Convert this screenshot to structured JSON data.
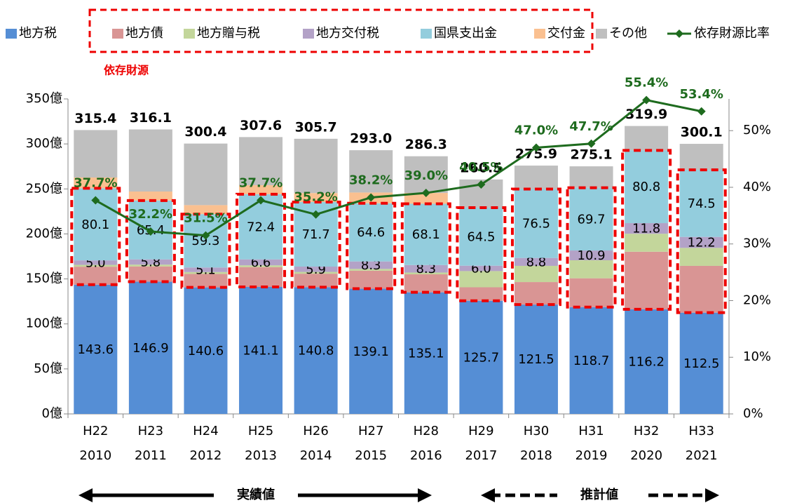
{
  "chart_data": {
    "type": "bar",
    "stacked": true,
    "categories": [
      "H22",
      "H23",
      "H24",
      "H25",
      "H26",
      "H27",
      "H28",
      "H29",
      "H30",
      "H31",
      "H32",
      "H33"
    ],
    "years": [
      2010,
      2011,
      2012,
      2013,
      2014,
      2015,
      2016,
      2017,
      2018,
      2019,
      2020,
      2021
    ],
    "series": [
      {
        "name": "地方税",
        "color": "#558ed5",
        "values": [
          143.6,
          146.9,
          140.6,
          141.1,
          140.8,
          139.1,
          135.1,
          125.7,
          121.5,
          118.7,
          116.2,
          112.5
        ],
        "labeled": true
      },
      {
        "name": "地方債",
        "color": "#d99594",
        "values": [
          20,
          17,
          15,
          22,
          15,
          20,
          20,
          15,
          25,
          32,
          64,
          52
        ]
      },
      {
        "name": "地方贈与税",
        "color": "#c3d69b",
        "values": [
          2,
          2,
          2,
          2,
          2,
          2,
          2,
          18,
          18,
          20,
          20,
          20
        ]
      },
      {
        "name": "地方交付税",
        "color": "#b3a2c7",
        "values": [
          5.0,
          5.8,
          5.1,
          6.6,
          5.9,
          8.3,
          8.3,
          6.0,
          8.8,
          10.9,
          11.8,
          12.2
        ],
        "value_labels": [
          "5.0",
          "5.8",
          "5.1",
          "6.6",
          "5.9",
          "8.3",
          "8.3",
          "6.0",
          "8.8",
          "10.9",
          "11.8",
          "12.2"
        ],
        "labeled": true
      },
      {
        "name": "国県支出金",
        "color": "#93cddd",
        "values": [
          80.1,
          65.4,
          59.3,
          72.4,
          71.7,
          64.6,
          68.1,
          64.5,
          76.5,
          69.7,
          80.8,
          74.5
        ],
        "labeled": true
      },
      {
        "name": "交付金",
        "color": "#fac090",
        "values": [
          12,
          10,
          10,
          10,
          10,
          12,
          12,
          0,
          0,
          0,
          0,
          0
        ]
      },
      {
        "name": "その他",
        "color": "#bfbfbf",
        "values": [
          52.7,
          69.0,
          68.4,
          53.5,
          60.3,
          47.0,
          40.8,
          31.3,
          26.1,
          23.8,
          27.1,
          28.9
        ]
      },
      {
        "name": "依存財源比率",
        "color": "#1e6b1e",
        "axis": "y2",
        "type": "line",
        "values": [
          37.7,
          32.2,
          31.5,
          37.7,
          35.2,
          38.2,
          39.0,
          40.5,
          47.0,
          47.7,
          55.4,
          53.4
        ],
        "value_labels": [
          "37.7%",
          "32.2%",
          "31.5%",
          "37.7%",
          "35.2%",
          "38.2%",
          "39.0%",
          "40.5%",
          "47.0%",
          "47.7%",
          "55.4%",
          "53.4%"
        ]
      }
    ],
    "totals": [
      315.4,
      316.1,
      300.4,
      307.6,
      305.7,
      293.0,
      286.3,
      260.5,
      275.9,
      275.1,
      319.9,
      300.1
    ],
    "total_labels": [
      "315.4",
      "316.1",
      "300.4",
      "307.6",
      "305.7",
      "293.0",
      "286.3",
      "260.5",
      "275.9",
      "275.1",
      "319.9",
      "300.1"
    ],
    "ylim": [
      0,
      350
    ],
    "yticks": [
      {
        "value": 0,
        "label": "0億"
      },
      {
        "value": 50,
        "label": "50億"
      },
      {
        "value": 100,
        "label": "100億"
      },
      {
        "value": 150,
        "label": "150億"
      },
      {
        "value": 200,
        "label": "200億"
      },
      {
        "value": 250,
        "label": "250億"
      },
      {
        "value": 300,
        "label": "300億"
      },
      {
        "value": 350,
        "label": "350億"
      }
    ],
    "y2lim": [
      0,
      55.6
    ],
    "y2ticks": [
      {
        "value": 0,
        "label": "0%"
      },
      {
        "value": 10,
        "label": "10%"
      },
      {
        "value": 20,
        "label": "20%"
      },
      {
        "value": 30,
        "label": "30%"
      },
      {
        "value": 40,
        "label": "40%"
      },
      {
        "value": 50,
        "label": "50%"
      }
    ],
    "grid": false,
    "legend": "top",
    "annotations": {
      "dependent": "依存財源",
      "actual": "実績値",
      "estimate": "推計値"
    }
  }
}
